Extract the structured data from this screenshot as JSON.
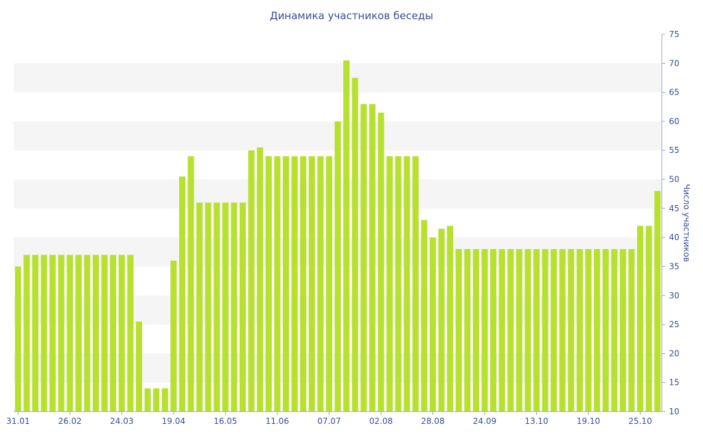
{
  "chart_data": {
    "type": "bar",
    "title": "Динамика участников беседы",
    "xlabel": "",
    "ylabel": "Число участников",
    "ylim": [
      10,
      75
    ],
    "yticks": [
      10,
      15,
      20,
      25,
      30,
      35,
      40,
      45,
      50,
      55,
      60,
      65,
      70,
      75
    ],
    "y_axis_side": "right",
    "grid": "alternating horizontal bands",
    "bar_color": "#b8e02e",
    "band_color": "#f5f5f5",
    "text_color": "#3a4f8f",
    "x_tick_labels": [
      {
        "index": 0,
        "label": "31.01"
      },
      {
        "index": 6,
        "label": "26.02"
      },
      {
        "index": 12,
        "label": "24.03"
      },
      {
        "index": 18,
        "label": "19.04"
      },
      {
        "index": 24,
        "label": "16.05"
      },
      {
        "index": 30,
        "label": "11.06"
      },
      {
        "index": 36,
        "label": "07.07"
      },
      {
        "index": 42,
        "label": "02.08"
      },
      {
        "index": 48,
        "label": "28.08"
      },
      {
        "index": 54,
        "label": "24.09"
      },
      {
        "index": 60,
        "label": "13.10"
      },
      {
        "index": 66,
        "label": "19.10"
      },
      {
        "index": 72,
        "label": "25.10"
      }
    ],
    "values": [
      35,
      37,
      37,
      37,
      37,
      37,
      37,
      37,
      37,
      37,
      37,
      37,
      37,
      37,
      25.5,
      14,
      14,
      14,
      36,
      50.5,
      54,
      46,
      46,
      46,
      46,
      46,
      46,
      55,
      55.5,
      54,
      54,
      54,
      54,
      54,
      54,
      54,
      54,
      60,
      70.5,
      67.5,
      63,
      63,
      61.5,
      54,
      54,
      54,
      54,
      43,
      40,
      41.5,
      42,
      38,
      38,
      38,
      38,
      38,
      38,
      38,
      38,
      38,
      38,
      38,
      38,
      38,
      38,
      38,
      38,
      38,
      38,
      38,
      38,
      38,
      42,
      42,
      48
    ]
  }
}
